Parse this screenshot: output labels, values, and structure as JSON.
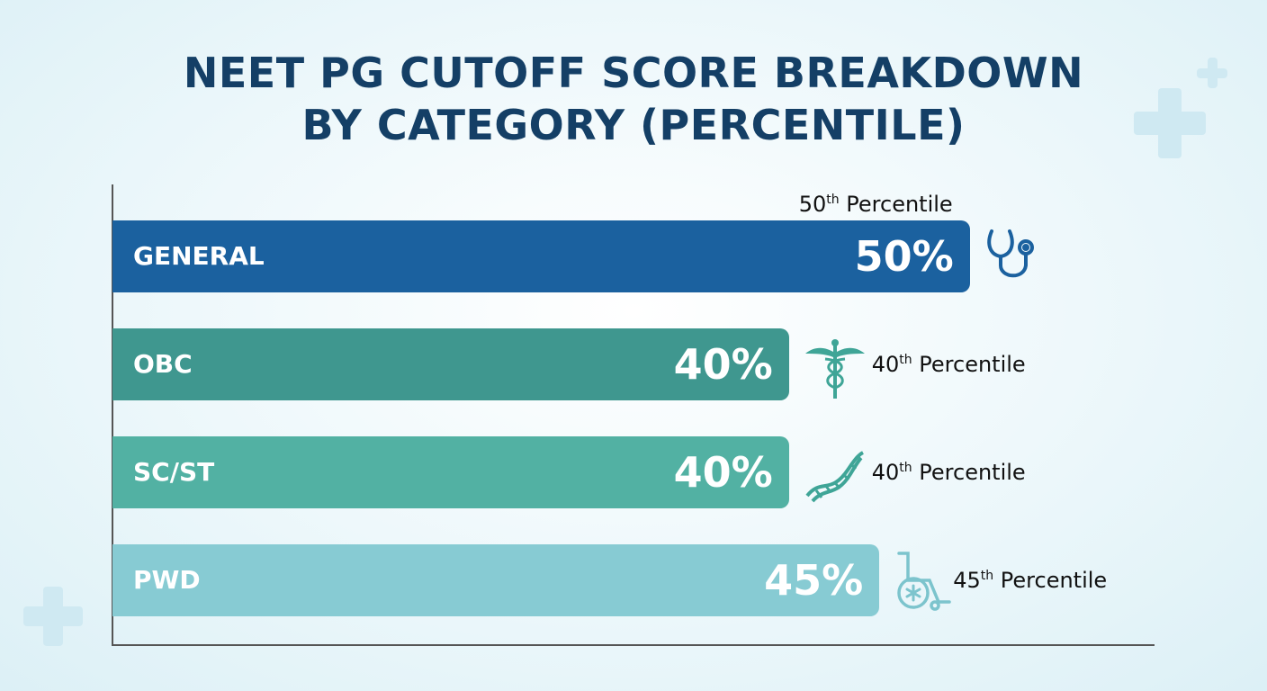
{
  "chart_data": {
    "type": "bar",
    "orientation": "horizontal",
    "title": "NEET PG CUTOFF SCORE BREAKDOWN BY CATEGORY (PERCENTILE)",
    "title_lines": [
      "NEET PG CUTOFF SCORE BREAKDOWN",
      "BY CATEGORY (PERCENTILE)"
    ],
    "categories": [
      "GENERAL",
      "OBC",
      "SC/ST",
      "PWD"
    ],
    "values": [
      50,
      40,
      40,
      45
    ],
    "value_labels": [
      "50%",
      "40%",
      "40%",
      "45%"
    ],
    "annotations": [
      {
        "num": "50",
        "sup": "th",
        "text": " Percentile"
      },
      {
        "num": "40",
        "sup": "th",
        "text": " Percentile"
      },
      {
        "num": "40",
        "sup": "th",
        "text": " Percentile"
      },
      {
        "num": "45",
        "sup": "th",
        "text": " Percentile"
      }
    ],
    "icons": [
      "stethoscope-icon",
      "caduceus-icon",
      "dna-icon",
      "wheelchair-icon"
    ],
    "colors": [
      "#1b619f",
      "#3f978f",
      "#52b1a3",
      "#87cbd3"
    ],
    "title_color": "#143f66",
    "grid": false
  }
}
